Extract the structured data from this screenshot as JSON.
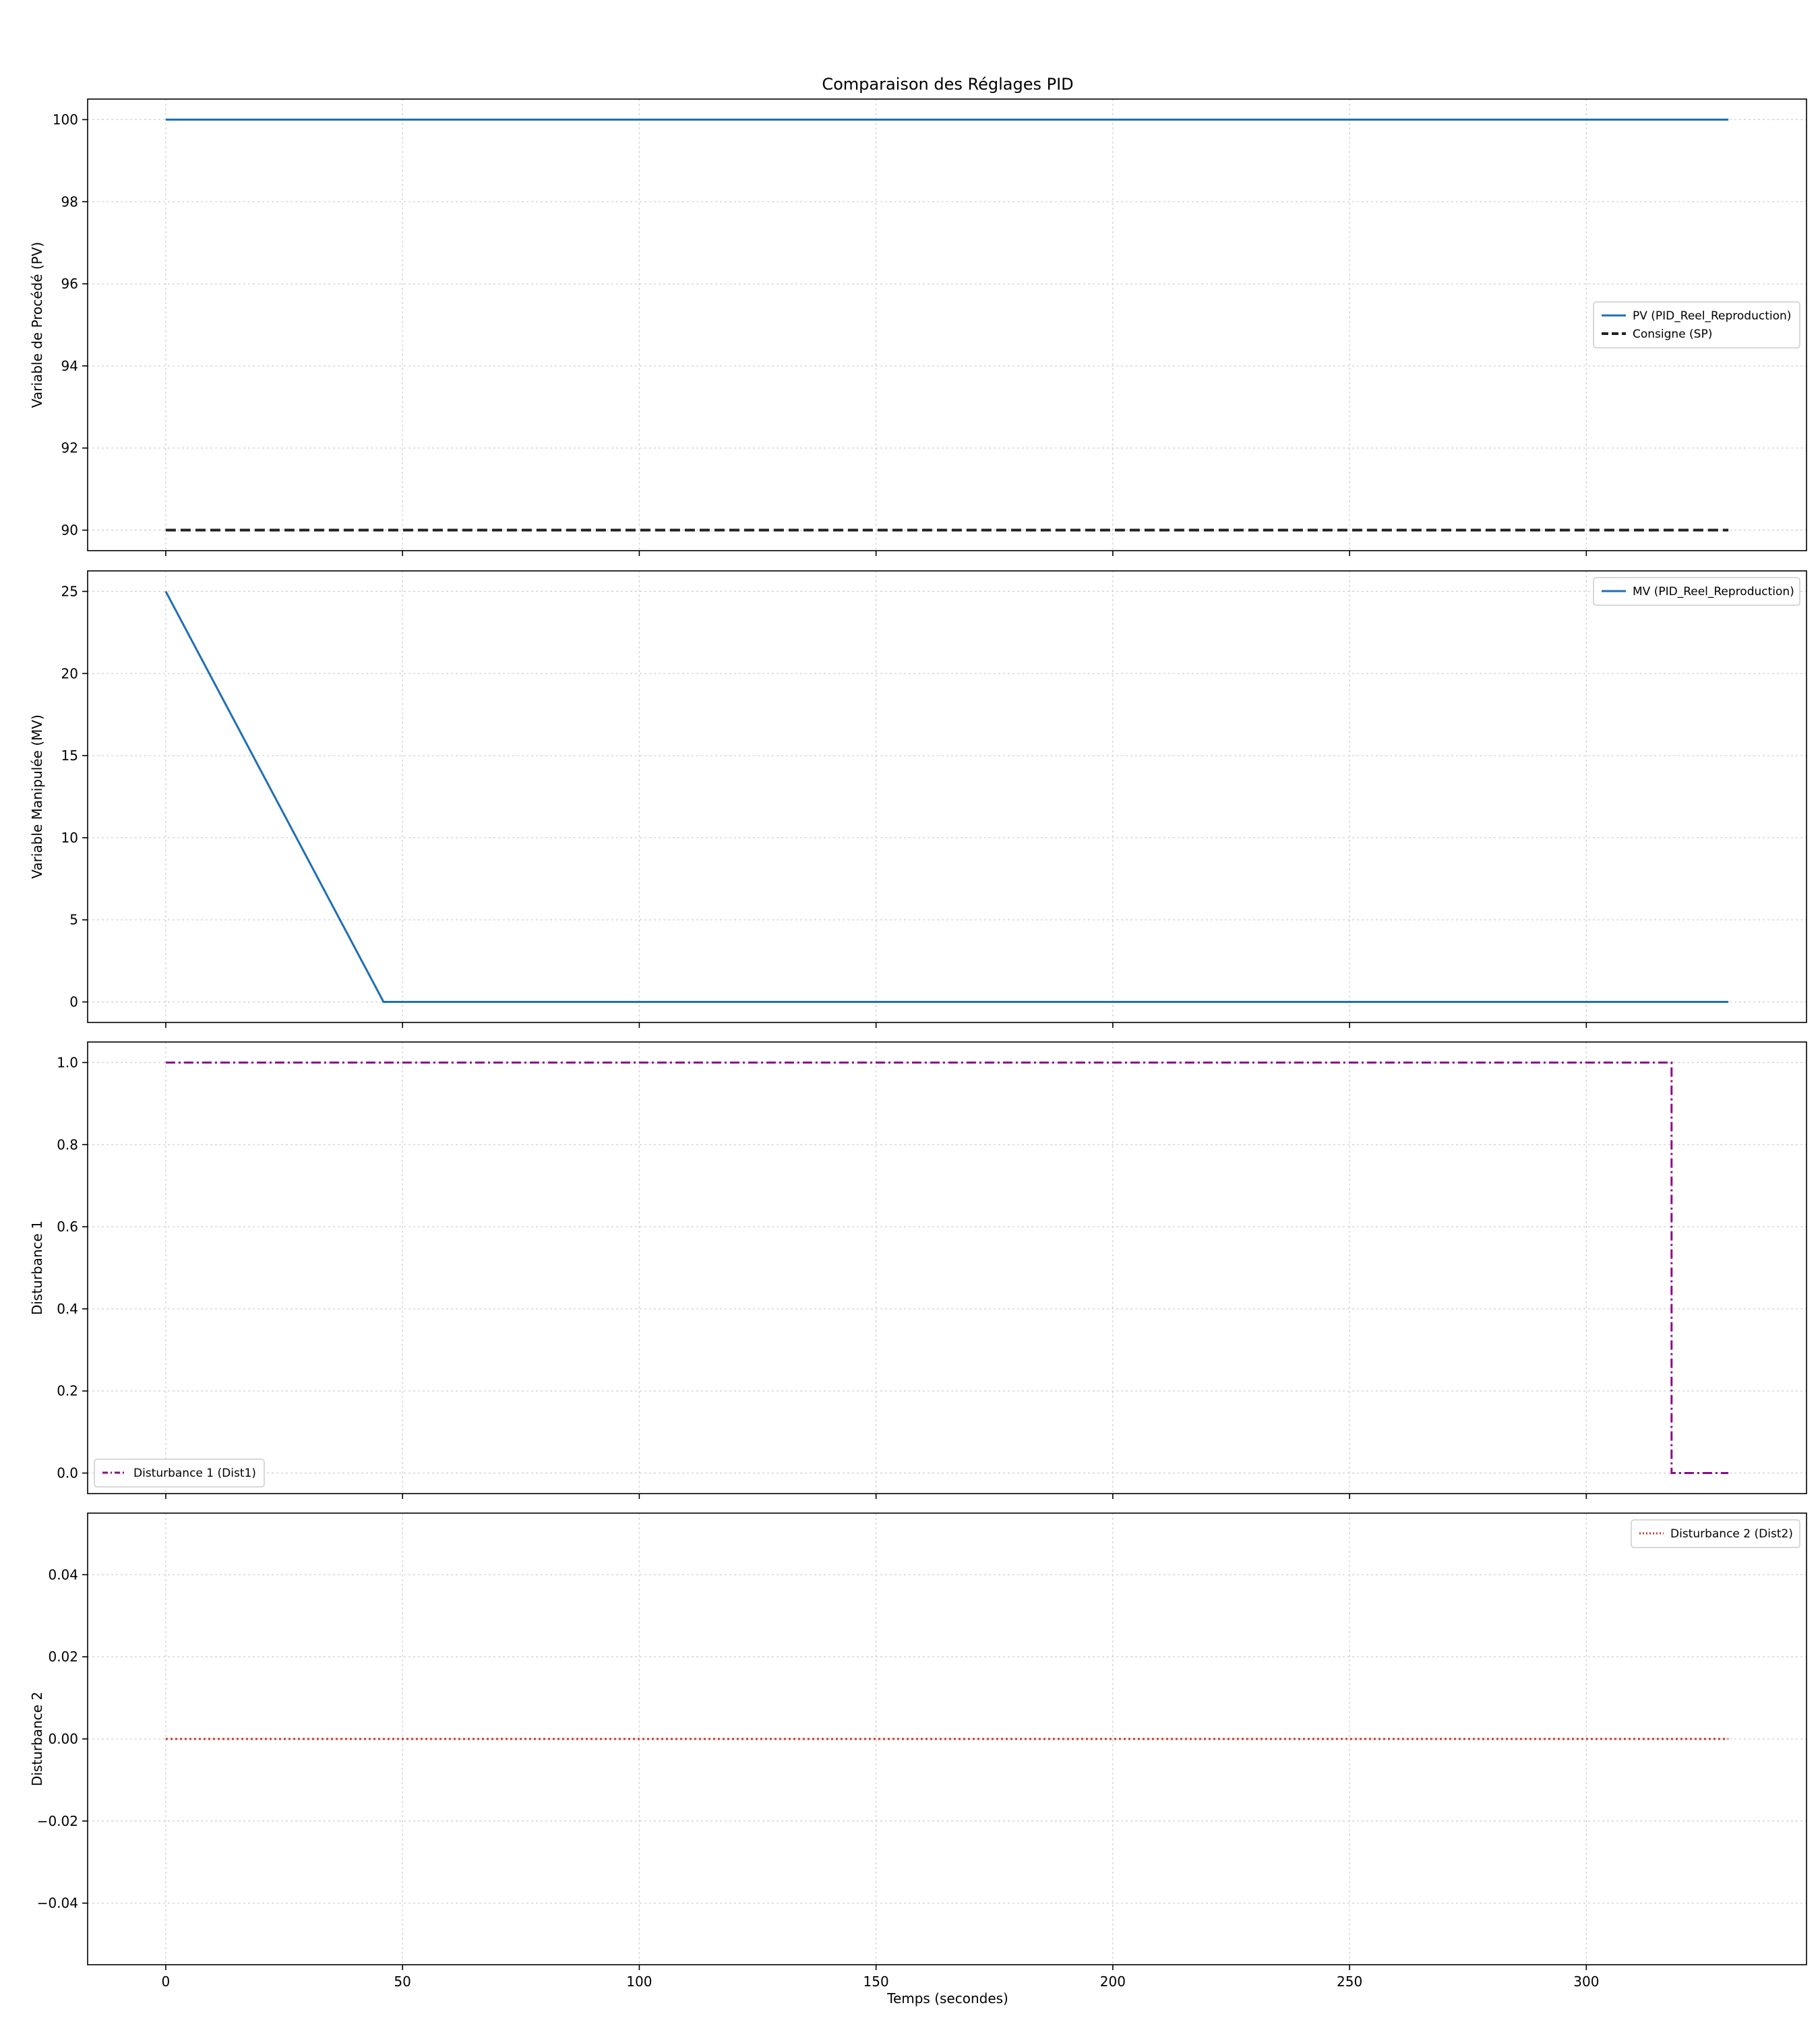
{
  "figure": {
    "title": "Comparaison des Réglages PID",
    "xlabel": "Temps (secondes)"
  },
  "chart_data": [
    {
      "type": "line",
      "title": "Comparaison des Réglages PID",
      "xlabel": "",
      "ylabel": "Variable de Procédé (PV)",
      "xlim": [
        -16.5,
        346.5
      ],
      "ylim": [
        89.5,
        100.5
      ],
      "x_ticks": [
        0,
        50,
        100,
        150,
        200,
        250,
        300
      ],
      "y_ticks": [
        90,
        92,
        94,
        96,
        98,
        100
      ],
      "grid": true,
      "legend_placement": "center-right",
      "series": [
        {
          "name": "PV (PID_Reel_Reproduction)",
          "color": "#1f6fb4",
          "style": "solid",
          "x": [
            0,
            330
          ],
          "y": [
            100,
            100
          ]
        },
        {
          "name": "Consigne (SP)",
          "color": "#222222",
          "style": "dashed",
          "x": [
            0,
            330
          ],
          "y": [
            90,
            90
          ]
        }
      ]
    },
    {
      "type": "line",
      "xlabel": "",
      "ylabel": "Variable Manipulée (MV)",
      "xlim": [
        -16.5,
        346.5
      ],
      "ylim": [
        -1.25,
        26.25
      ],
      "x_ticks": [
        0,
        50,
        100,
        150,
        200,
        250,
        300
      ],
      "y_ticks": [
        0,
        5,
        10,
        15,
        20,
        25
      ],
      "grid": true,
      "legend_placement": "top-right",
      "series": [
        {
          "name": "MV (PID_Reel_Reproduction)",
          "color": "#1f6fb4",
          "style": "solid",
          "x": [
            0,
            46,
            330
          ],
          "y": [
            25,
            0,
            0
          ]
        }
      ]
    },
    {
      "type": "line",
      "xlabel": "",
      "ylabel": "Disturbance 1",
      "xlim": [
        -16.5,
        346.5
      ],
      "ylim": [
        -0.05,
        1.05
      ],
      "x_ticks": [
        0,
        50,
        100,
        150,
        200,
        250,
        300
      ],
      "y_ticks": [
        0.0,
        0.2,
        0.4,
        0.6,
        0.8,
        1.0
      ],
      "grid": true,
      "legend_placement": "bottom-left",
      "series": [
        {
          "name": "Disturbance 1 (Dist1)",
          "color": "#8b0a8b",
          "style": "dashdot",
          "x": [
            0,
            318,
            318,
            330
          ],
          "y": [
            1,
            1,
            0,
            0
          ]
        }
      ]
    },
    {
      "type": "line",
      "xlabel": "Temps (secondes)",
      "ylabel": "Disturbance 2",
      "xlim": [
        -16.5,
        346.5
      ],
      "ylim": [
        -0.055,
        0.055
      ],
      "x_ticks": [
        0,
        50,
        100,
        150,
        200,
        250,
        300
      ],
      "y_ticks": [
        -0.04,
        -0.02,
        0.0,
        0.02,
        0.04
      ],
      "grid": true,
      "legend_placement": "top-right",
      "series": [
        {
          "name": "Disturbance 2 (Dist2)",
          "color": "#c0392b",
          "style": "dotted",
          "x": [
            0,
            330
          ],
          "y": [
            0,
            0
          ]
        }
      ]
    }
  ]
}
